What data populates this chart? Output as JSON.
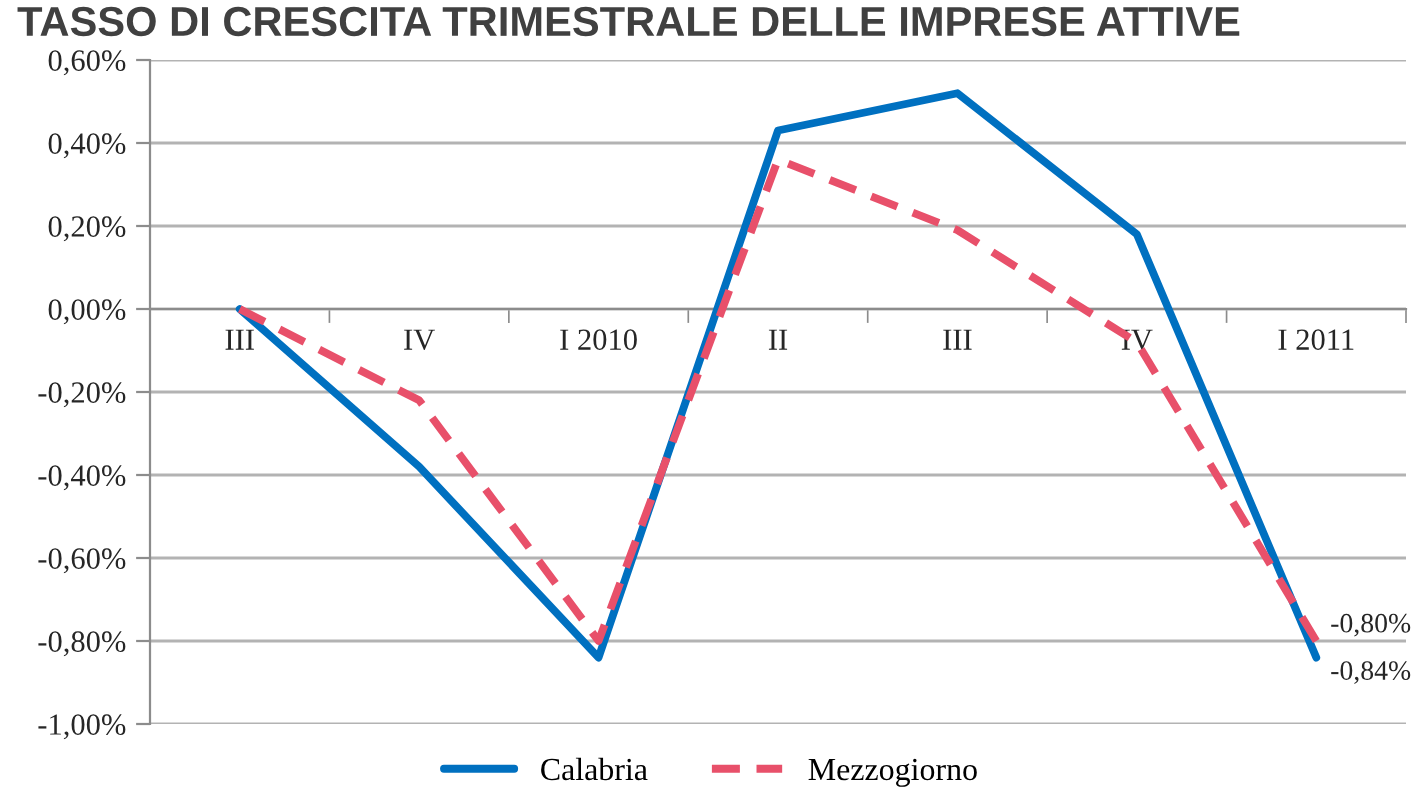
{
  "chart_data": {
    "type": "line",
    "title": "TASSO DI CRESCITA TRIMESTRALE DELLE IMPRESE ATTIVE",
    "categories": [
      "III",
      "IV",
      "I 2010",
      "II",
      "III",
      "IV",
      "I 2011"
    ],
    "series": [
      {
        "name": "Calabria",
        "color": "#0070c0",
        "line_style": "solid",
        "values": [
          0,
          -0.38,
          -0.84,
          0.43,
          0.52,
          0.18,
          -0.84
        ],
        "value_labels": [
          null,
          null,
          null,
          null,
          null,
          null,
          "-0,84%"
        ]
      },
      {
        "name": "Mezzogiorno",
        "color": "#e8506a",
        "line_style": "dashed",
        "values": [
          0,
          -0.22,
          -0.8,
          0.36,
          0.19,
          -0.08,
          -0.8
        ],
        "value_labels": [
          null,
          null,
          null,
          null,
          null,
          null,
          "-0,80%"
        ]
      }
    ],
    "ylim": [
      -1,
      0.6
    ],
    "yticks": [
      {
        "value": 0.6,
        "label": "0,60%"
      },
      {
        "value": 0.4,
        "label": "0,40%"
      },
      {
        "value": 0.2,
        "label": "0,20%"
      },
      {
        "value": 0,
        "label": "0,00%"
      },
      {
        "value": -0.2,
        "label": "-0,20%"
      },
      {
        "value": -0.4,
        "label": "-0,40%"
      },
      {
        "value": -0.6,
        "label": "-0,60%"
      },
      {
        "value": -0.8,
        "label": "-0,80%"
      },
      {
        "value": -1,
        "label": "-1,00%"
      }
    ],
    "grid": "y",
    "legend": "bottom"
  }
}
